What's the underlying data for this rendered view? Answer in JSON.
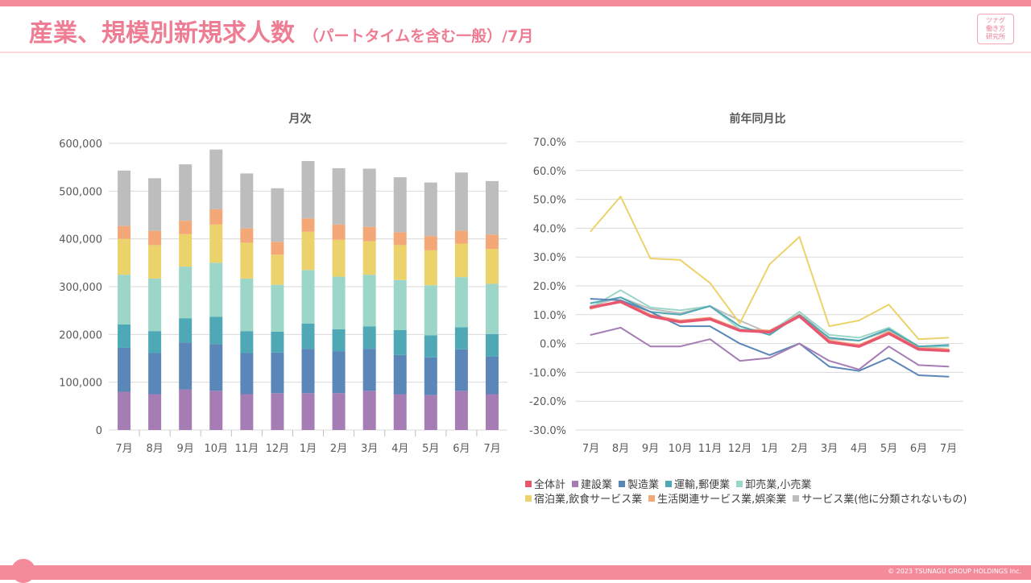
{
  "page": {
    "title": "産業、規模別新規求人数",
    "subtitle": "（パートタイムを含む一般）/7月",
    "logo_lines": [
      "ツナグ",
      "働き方",
      "研究所"
    ],
    "footer": "© 2023 TSUNAGU GROUP HOLDINGS Inc."
  },
  "colors": {
    "all_industries": "#e8576f",
    "construction": "#a57cb4",
    "manufacturing": "#5b86b8",
    "transport": "#4fa8b6",
    "wholesale_retail": "#9bd6c8",
    "hospitality": "#ecd26a",
    "lifestyle": "#f4a877",
    "other_services": "#bdbdbd"
  },
  "chart_data": [
    {
      "type": "bar",
      "stacked": true,
      "title": "月次",
      "categories": [
        "7月",
        "8月",
        "9月",
        "10月",
        "11月",
        "12月",
        "1月",
        "2月",
        "3月",
        "4月",
        "5月",
        "6月",
        "7月"
      ],
      "ylim": [
        0,
        600000
      ],
      "yticks": [
        "0",
        "100,000",
        "200,000",
        "300,000",
        "400,000",
        "500,000",
        "600,000"
      ],
      "series": [
        {
          "name": "建設業",
          "color_key": "construction",
          "values": [
            80000,
            75000,
            85000,
            82000,
            75000,
            77000,
            77000,
            77000,
            82000,
            75000,
            73000,
            82000,
            75000
          ]
        },
        {
          "name": "製造業",
          "color_key": "manufacturing",
          "values": [
            92000,
            86000,
            98000,
            98000,
            86000,
            85000,
            93000,
            88000,
            88000,
            82000,
            79000,
            87000,
            79000
          ]
        },
        {
          "name": "運輸,郵便業",
          "color_key": "transport",
          "values": [
            49000,
            46000,
            51000,
            57000,
            46000,
            44000,
            53000,
            46000,
            47000,
            52000,
            46000,
            46000,
            47000
          ]
        },
        {
          "name": "卸売業,小売業",
          "color_key": "wholesale_retail",
          "values": [
            104000,
            110000,
            108000,
            113000,
            110000,
            98000,
            112000,
            110000,
            108000,
            105000,
            105000,
            105000,
            105000
          ]
        },
        {
          "name": "宿泊業,飲食サービス業",
          "color_key": "hospitality",
          "values": [
            75000,
            70000,
            68000,
            80000,
            75000,
            63000,
            80000,
            77000,
            70000,
            73000,
            73000,
            70000,
            73000
          ]
        },
        {
          "name": "生活関連サービス業,娯楽業",
          "color_key": "lifestyle",
          "values": [
            27000,
            30000,
            28000,
            32000,
            30000,
            27000,
            28000,
            32000,
            30000,
            27000,
            30000,
            27000,
            30000
          ]
        },
        {
          "name": "サービス業(他に分類されないもの)",
          "color_key": "other_services",
          "values": [
            116000,
            110000,
            118000,
            125000,
            115000,
            112000,
            120000,
            118000,
            122000,
            115000,
            112000,
            122000,
            112000
          ]
        }
      ]
    },
    {
      "type": "line",
      "title": "前年同月比",
      "categories": [
        "7月",
        "8月",
        "9月",
        "10月",
        "11月",
        "12月",
        "1月",
        "2月",
        "3月",
        "4月",
        "5月",
        "6月",
        "7月"
      ],
      "ylim": [
        -30,
        70
      ],
      "yticks": [
        "-30.0%",
        "-20.0%",
        "-10.0%",
        "0.0%",
        "10.0%",
        "20.0%",
        "30.0%",
        "40.0%",
        "50.0%",
        "60.0%",
        "70.0%"
      ],
      "series": [
        {
          "name": "全体計",
          "color_key": "all_industries",
          "values": [
            12.5,
            14.5,
            9.5,
            7.5,
            8.5,
            4.5,
            4.0,
            9.5,
            0.5,
            -1.0,
            3.5,
            -2.0,
            -2.5
          ]
        },
        {
          "name": "建設業",
          "color_key": "construction",
          "values": [
            3.0,
            5.5,
            -1.0,
            -1.0,
            1.5,
            -6.0,
            -5.0,
            0.0,
            -6.0,
            -9.0,
            -1.0,
            -7.5,
            -8.0
          ]
        },
        {
          "name": "製造業",
          "color_key": "manufacturing",
          "values": [
            15.5,
            15.0,
            11.0,
            6.0,
            6.0,
            0.0,
            -4.0,
            0.0,
            -8.0,
            -9.5,
            -5.0,
            -11.0,
            -11.5
          ]
        },
        {
          "name": "運輸,郵便業",
          "color_key": "transport",
          "values": [
            14.0,
            16.0,
            11.0,
            10.0,
            13.0,
            6.0,
            3.0,
            10.0,
            2.0,
            1.0,
            5.0,
            -1.0,
            -0.5
          ]
        },
        {
          "name": "卸売業,小売業",
          "color_key": "wholesale_retail",
          "values": [
            12.5,
            18.5,
            12.5,
            11.5,
            13.0,
            5.0,
            4.0,
            11.0,
            3.0,
            2.0,
            5.5,
            -1.0,
            -1.0
          ]
        },
        {
          "name": "宿泊業,飲食サービス業",
          "color_key": "hospitality",
          "values": [
            39.0,
            51.0,
            29.5,
            29.0,
            21.0,
            7.0,
            27.5,
            37.0,
            6.0,
            8.0,
            13.5,
            1.5,
            2.0
          ]
        },
        {
          "name": "生活関連サービス業,娯楽業",
          "color_key": "lifestyle",
          "values": [
            12.0,
            15.0,
            10.0,
            8.0,
            9.0,
            5.0,
            4.5,
            10.0,
            1.0,
            -0.5,
            4.0,
            -1.5,
            -2.0
          ]
        },
        {
          "name": "サービス業(他に分類されないもの)",
          "color_key": "other_services",
          "values": [
            13.0,
            16.0,
            12.0,
            10.5,
            13.0,
            8.0,
            3.5,
            11.0,
            1.5,
            1.0,
            4.5,
            -1.0,
            -2.0
          ]
        }
      ],
      "legend": [
        {
          "name": "全体計",
          "color_key": "all_industries"
        },
        {
          "name": "建設業",
          "color_key": "construction"
        },
        {
          "name": "製造業",
          "color_key": "manufacturing"
        },
        {
          "name": "運輸,郵便業",
          "color_key": "transport"
        },
        {
          "name": "卸売業,小売業",
          "color_key": "wholesale_retail"
        },
        {
          "name": "宿泊業,飲食サービス業",
          "color_key": "hospitality"
        },
        {
          "name": "生活関連サービス業,娯楽業",
          "color_key": "lifestyle"
        },
        {
          "name": "サービス業(他に分類されないもの)",
          "color_key": "other_services"
        }
      ]
    }
  ]
}
